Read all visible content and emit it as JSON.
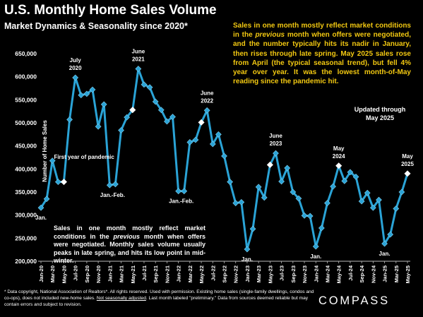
{
  "title": "U.S. Monthly Home Sales Volume",
  "subtitle": "Market Dynamics & Seasonality since 2020*",
  "note_top_parts": [
    "Sales in one month mostly reflect market conditions in the ",
    "previous",
    " month when offers were negotiated, and the number typically hits its nadir in January, then rises through late spring. May 2025 sales rose from April (the typical seasonal trend), but fell 4% year over year. It was the lowest month-of-May reading since the pandemic hit."
  ],
  "note_bottom_parts": [
    "Sales in one month mostly reflect market conditions in the ",
    "previous",
    " month when offers were negotiated. Monthly sales volume usually peaks in late spring, and hits its low point in mid-winter."
  ],
  "updated_lines": [
    "Updated through",
    "May 2025"
  ],
  "footer_parts": [
    "* Data copyright, National Association of Realtors*. All rights reserved. Used with permission. Existing home sales (single-family dwellings, condos and co-ops), does not included new-home sales. ",
    "Not seasonally adjusted",
    ". Last month labeled \"preliminary.\" Data from sources deemed reliable but may contain errors and subject to revision."
  ],
  "logo": "COMPASS",
  "colors": {
    "line": "#2aa3d6",
    "marker": "#2aa3d6",
    "highlight": "#ffffff",
    "accent_text": "#f2c811",
    "background": "#000000"
  },
  "chart_data": {
    "type": "line",
    "title": "U.S. Monthly Home Sales Volume",
    "ylabel": "Number of Home Sales",
    "ylim": [
      200000,
      650000
    ],
    "yticks": [
      200000,
      250000,
      300000,
      350000,
      400000,
      450000,
      500000,
      550000,
      600000,
      650000
    ],
    "ytick_labels": [
      "200,000",
      "250,000",
      "300,000",
      "350,000",
      "400,000",
      "450,000",
      "500,000",
      "550,000",
      "600,000",
      "650,000"
    ],
    "x": [
      "Jan-20",
      "Feb-20",
      "Mar-20",
      "Apr-20",
      "May-20",
      "Jun-20",
      "Jul-20",
      "Aug-20",
      "Sep-20",
      "Oct-20",
      "Nov-20",
      "Dec-20",
      "Jan-21",
      "Feb-21",
      "Mar-21",
      "Apr-21",
      "May-21",
      "Jun-21",
      "Jul-21",
      "Aug-21",
      "Sep-21",
      "Oct-21",
      "Nov-21",
      "Dec-21",
      "Jan-22",
      "Feb-22",
      "Mar-22",
      "Apr-22",
      "May-22",
      "Jun-22",
      "Jul-22",
      "Aug-22",
      "Sep-22",
      "Oct-22",
      "Nov-22",
      "Dec-22",
      "Jan-23",
      "Feb-23",
      "Mar-23",
      "Apr-23",
      "May-23",
      "Jun-23",
      "Jul-23",
      "Aug-23",
      "Sep-23",
      "Oct-23",
      "Nov-23",
      "Dec-23",
      "Jan-24",
      "Feb-24",
      "Mar-24",
      "Apr-24",
      "May-24",
      "Jun-24",
      "Jul-24",
      "Aug-24",
      "Sep-24",
      "Oct-24",
      "Nov-24",
      "Dec-24",
      "Jan-25",
      "Feb-25",
      "Mar-25",
      "Apr-25",
      "May-25"
    ],
    "x_tick_labels": [
      "Jan-20",
      "Mar-20",
      "May-20",
      "Jul-20",
      "Sep-20",
      "Nov-20",
      "Jan-21",
      "Mar-21",
      "May-21",
      "Jul-21",
      "Sep-21",
      "Nov-21",
      "Jan-22",
      "Mar-22",
      "May-22",
      "Jul-22",
      "Sep-22",
      "Nov-22",
      "Jan-23",
      "Mar-23",
      "May-23",
      "Jul-23",
      "Sep-23",
      "Nov-23",
      "Jan-24",
      "Mar-24",
      "May-24",
      "Jul-24",
      "Sep-24",
      "Nov-24",
      "Jan-25",
      "Mar-25",
      "May-25"
    ],
    "series": [
      {
        "values": [
          316000,
          335000,
          418000,
          372000,
          372000,
          507000,
          598000,
          560000,
          563000,
          572000,
          492000,
          540000,
          365000,
          367000,
          484000,
          512000,
          528000,
          617000,
          583000,
          577000,
          546000,
          528000,
          503000,
          513000,
          352000,
          352000,
          458000,
          463000,
          501000,
          527000,
          454000,
          475000,
          428000,
          372000,
          326000,
          328000,
          226000,
          270000,
          361000,
          338000,
          409000,
          434000,
          373000,
          402000,
          350000,
          336000,
          299000,
          298000,
          232000,
          272000,
          326000,
          362000,
          407000,
          374000,
          393000,
          383000,
          330000,
          348000,
          316000,
          333000,
          238000,
          258000,
          314000,
          350000,
          390000
        ]
      }
    ],
    "highlighted_points": [
      "May-20",
      "May-21",
      "May-22",
      "May-23",
      "May-24",
      "May-25"
    ],
    "annotations": [
      {
        "text": "Jan.",
        "at": "Jan-20",
        "pos": "below"
      },
      {
        "text": "July",
        "text2": "2020",
        "at": "Jul-20",
        "pos": "above"
      },
      {
        "text": "First year of pandemic",
        "at": "May-20",
        "pos": "below"
      },
      {
        "text": "Jan.-Feb.",
        "at": "Jan-21",
        "pos": "below"
      },
      {
        "text": "June",
        "text2": "2021",
        "at": "Jun-21",
        "pos": "above"
      },
      {
        "text": "June",
        "text2": "2022",
        "at": "Jun-22",
        "pos": "above"
      },
      {
        "text": "Jan.-Feb.",
        "at": "Jan-22",
        "pos": "below"
      },
      {
        "text": "Jan.",
        "at": "Jan-23",
        "pos": "below"
      },
      {
        "text": "June",
        "text2": "2023",
        "at": "Jun-23",
        "pos": "above"
      },
      {
        "text": "May",
        "text2": "2024",
        "at": "May-24",
        "pos": "above"
      },
      {
        "text": "Jan.",
        "at": "Jan-24",
        "pos": "below"
      },
      {
        "text": "Jan.",
        "at": "Jan-25",
        "pos": "below"
      },
      {
        "text": "May",
        "text2": "2025",
        "at": "May-25",
        "pos": "above"
      }
    ],
    "grid": false,
    "legend": "none"
  }
}
